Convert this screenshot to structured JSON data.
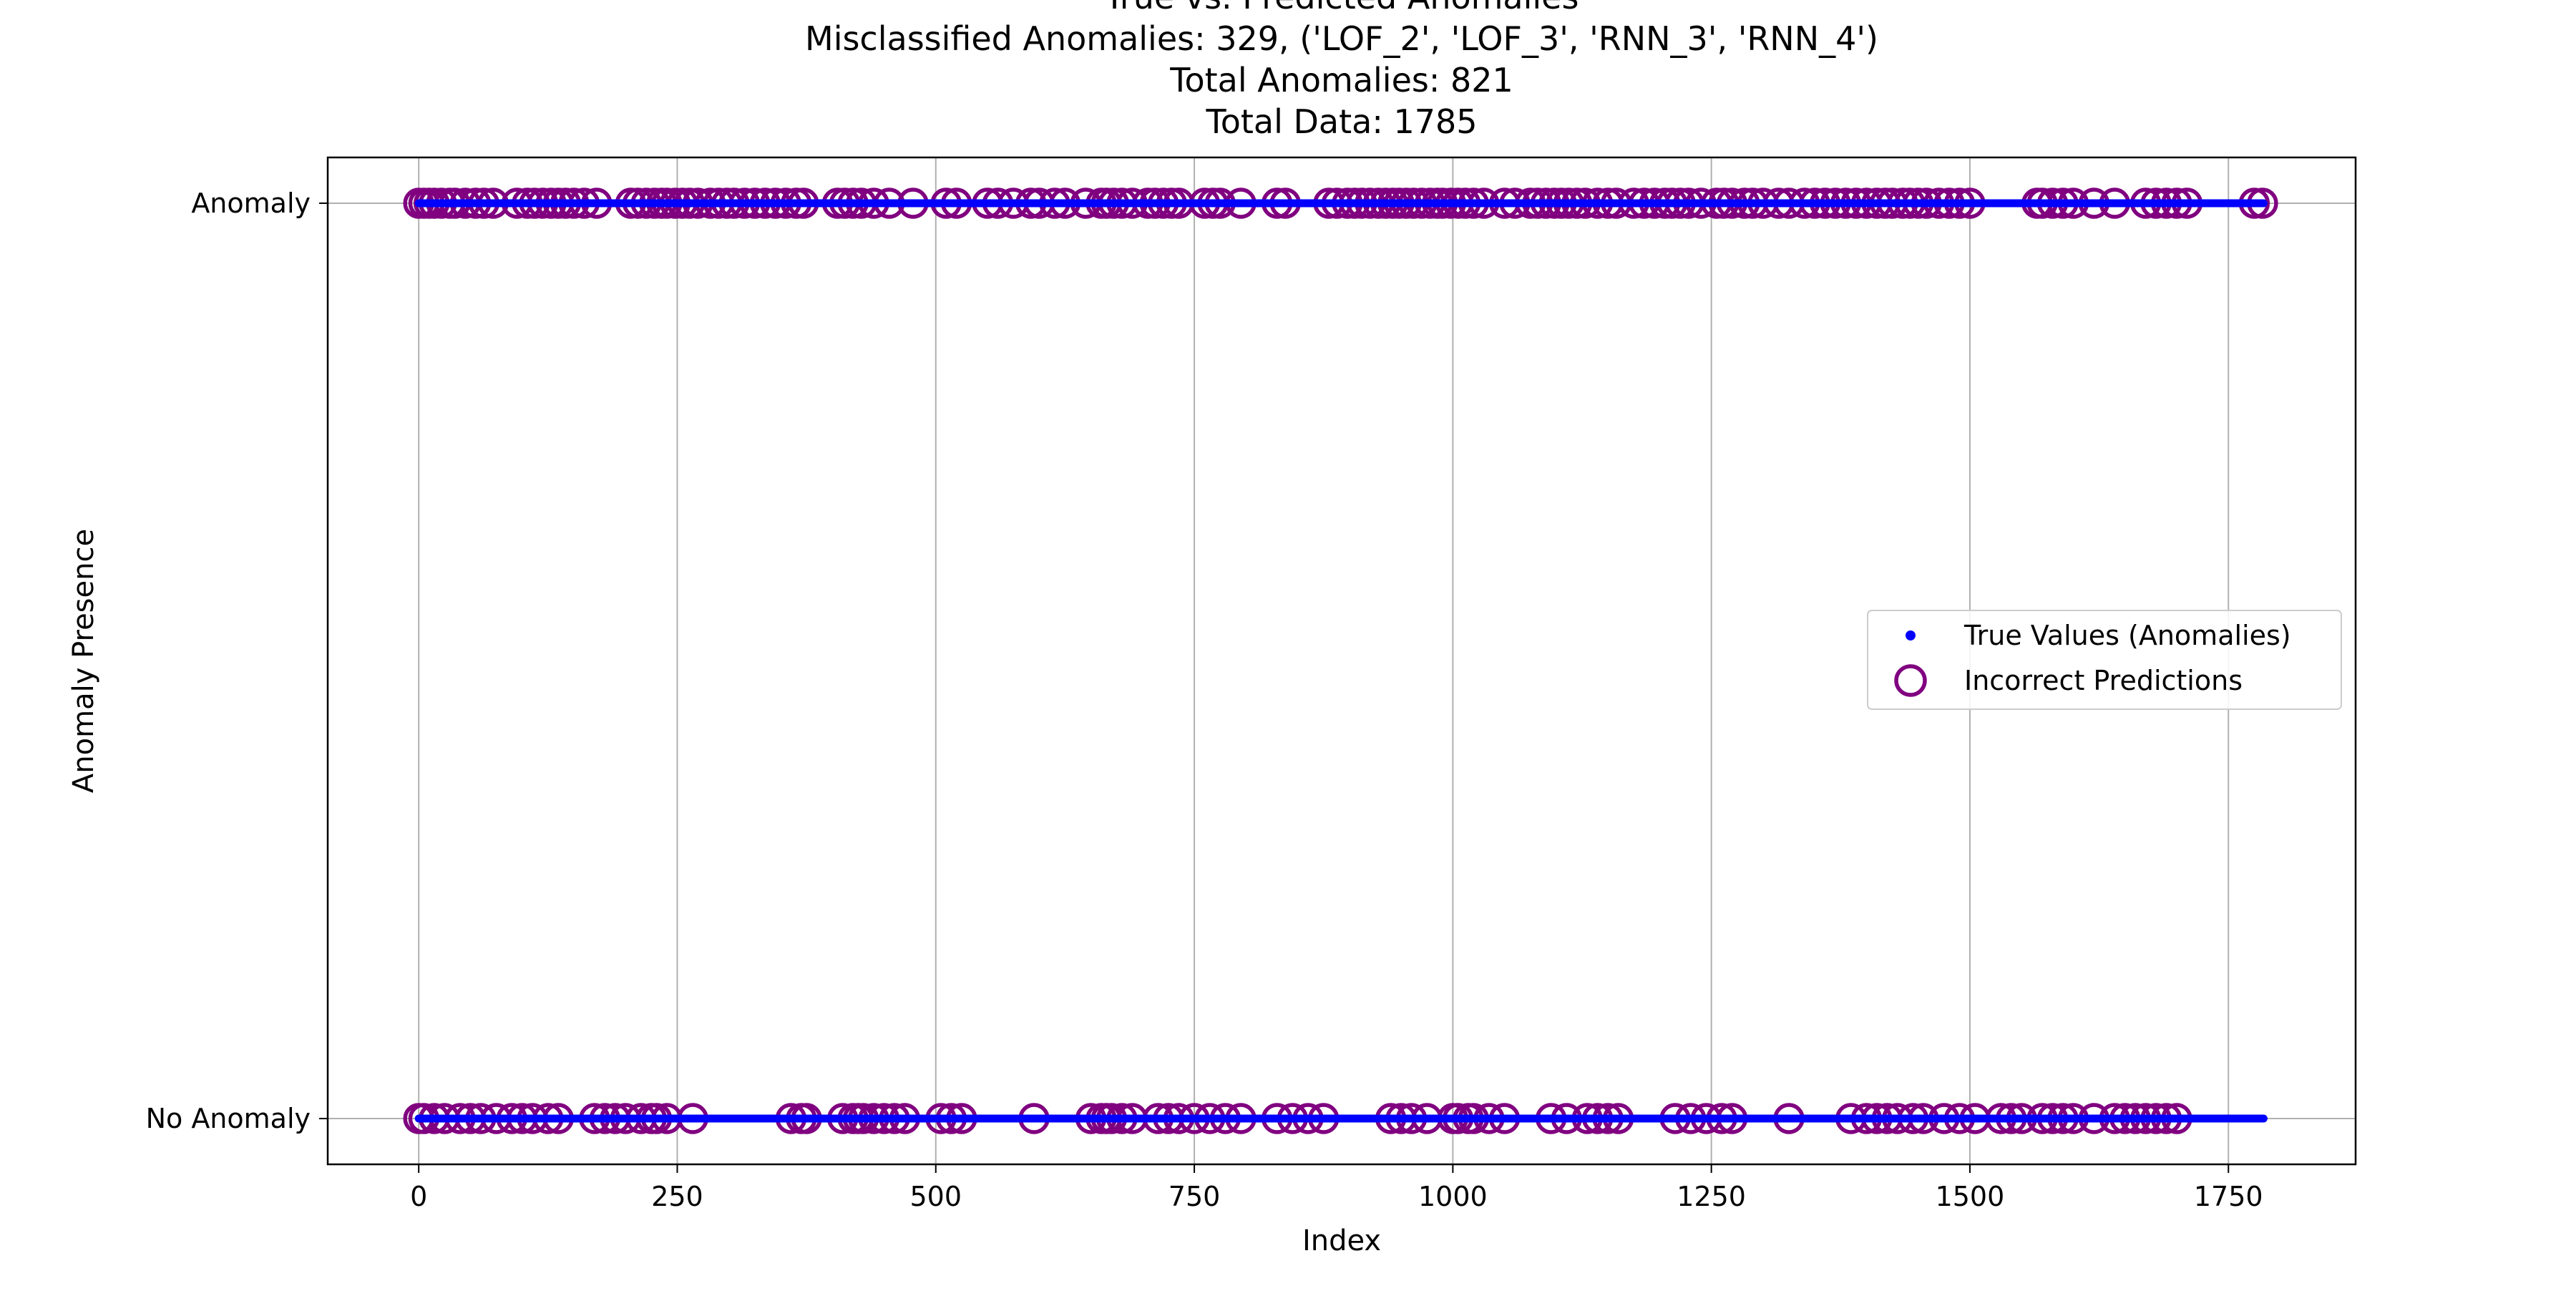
{
  "chart_data": {
    "type": "scatter",
    "title_lines": [
      "True vs. Predicted Anomalies",
      "Misclassified Anomalies: 329, ('LOF_2', 'LOF_3', 'RNN_3', 'RNN_4')",
      "Total Anomalies: 821",
      "Total Data: 1785"
    ],
    "xlabel": "Index",
    "ylabel": "Anomaly Presence",
    "xlim": [
      -88,
      1873
    ],
    "ylim": [
      -0.05,
      1.05
    ],
    "x_ticks": [
      0,
      250,
      500,
      750,
      1000,
      1250,
      1500,
      1750
    ],
    "x_tick_labels": [
      "0",
      "250",
      "500",
      "750",
      "1000",
      "1250",
      "1500",
      "1750"
    ],
    "y_ticks": [
      0,
      1
    ],
    "y_tick_labels": [
      "No Anomaly",
      "Anomaly"
    ],
    "grid": true,
    "legend_position": "center-right",
    "series": [
      {
        "name": "True Values (Anomalies)",
        "marker": "dot",
        "color": "#0000ff",
        "segments": [
          {
            "y": 1,
            "x_start": 0,
            "x_end": 1784
          },
          {
            "y": 0,
            "x_start": 0,
            "x_end": 1784
          }
        ]
      },
      {
        "name": "Incorrect Predictions",
        "marker": "open-circle",
        "color": "#800080",
        "points_y1": [
          0,
          5,
          10,
          15,
          22,
          30,
          35,
          45,
          55,
          63,
          72,
          95,
          105,
          112,
          120,
          128,
          135,
          142,
          150,
          160,
          172,
          205,
          212,
          220,
          228,
          235,
          240,
          248,
          255,
          262,
          270,
          282,
          290,
          298,
          305,
          315,
          325,
          335,
          345,
          355,
          365,
          372,
          405,
          412,
          420,
          428,
          440,
          455,
          478,
          510,
          520,
          550,
          560,
          575,
          592,
          600,
          615,
          625,
          645,
          660,
          665,
          672,
          680,
          690,
          705,
          712,
          720,
          728,
          735,
          760,
          768,
          775,
          795,
          830,
          838,
          880,
          888,
          898,
          905,
          912,
          920,
          928,
          935,
          942,
          948,
          955,
          962,
          970,
          978,
          985,
          990,
          998,
          1005,
          1012,
          1020,
          1030,
          1050,
          1060,
          1075,
          1082,
          1090,
          1098,
          1105,
          1112,
          1120,
          1128,
          1140,
          1150,
          1158,
          1175,
          1185,
          1195,
          1205,
          1212,
          1220,
          1228,
          1240,
          1255,
          1262,
          1270,
          1282,
          1290,
          1300,
          1315,
          1325,
          1340,
          1350,
          1360,
          1370,
          1380,
          1390,
          1400,
          1410,
          1418,
          1425,
          1435,
          1442,
          1450,
          1458,
          1470,
          1480,
          1490,
          1500,
          1565,
          1570,
          1580,
          1590,
          1600,
          1620,
          1640,
          1670,
          1680,
          1690,
          1700,
          1710,
          1775,
          1783
        ],
        "points_y0": [
          0,
          5,
          15,
          25,
          40,
          50,
          60,
          75,
          90,
          100,
          110,
          125,
          135,
          170,
          180,
          190,
          200,
          215,
          225,
          230,
          240,
          265,
          360,
          370,
          375,
          410,
          420,
          425,
          430,
          440,
          450,
          460,
          470,
          505,
          515,
          525,
          595,
          650,
          660,
          665,
          670,
          680,
          690,
          715,
          725,
          735,
          750,
          765,
          780,
          795,
          830,
          845,
          860,
          875,
          940,
          950,
          960,
          975,
          1000,
          1005,
          1015,
          1020,
          1035,
          1050,
          1095,
          1110,
          1130,
          1140,
          1150,
          1160,
          1215,
          1230,
          1245,
          1260,
          1270,
          1325,
          1385,
          1400,
          1410,
          1420,
          1430,
          1445,
          1455,
          1475,
          1490,
          1505,
          1530,
          1540,
          1550,
          1570,
          1580,
          1590,
          1600,
          1620,
          1640,
          1650,
          1660,
          1670,
          1680,
          1690,
          1700
        ]
      }
    ]
  }
}
